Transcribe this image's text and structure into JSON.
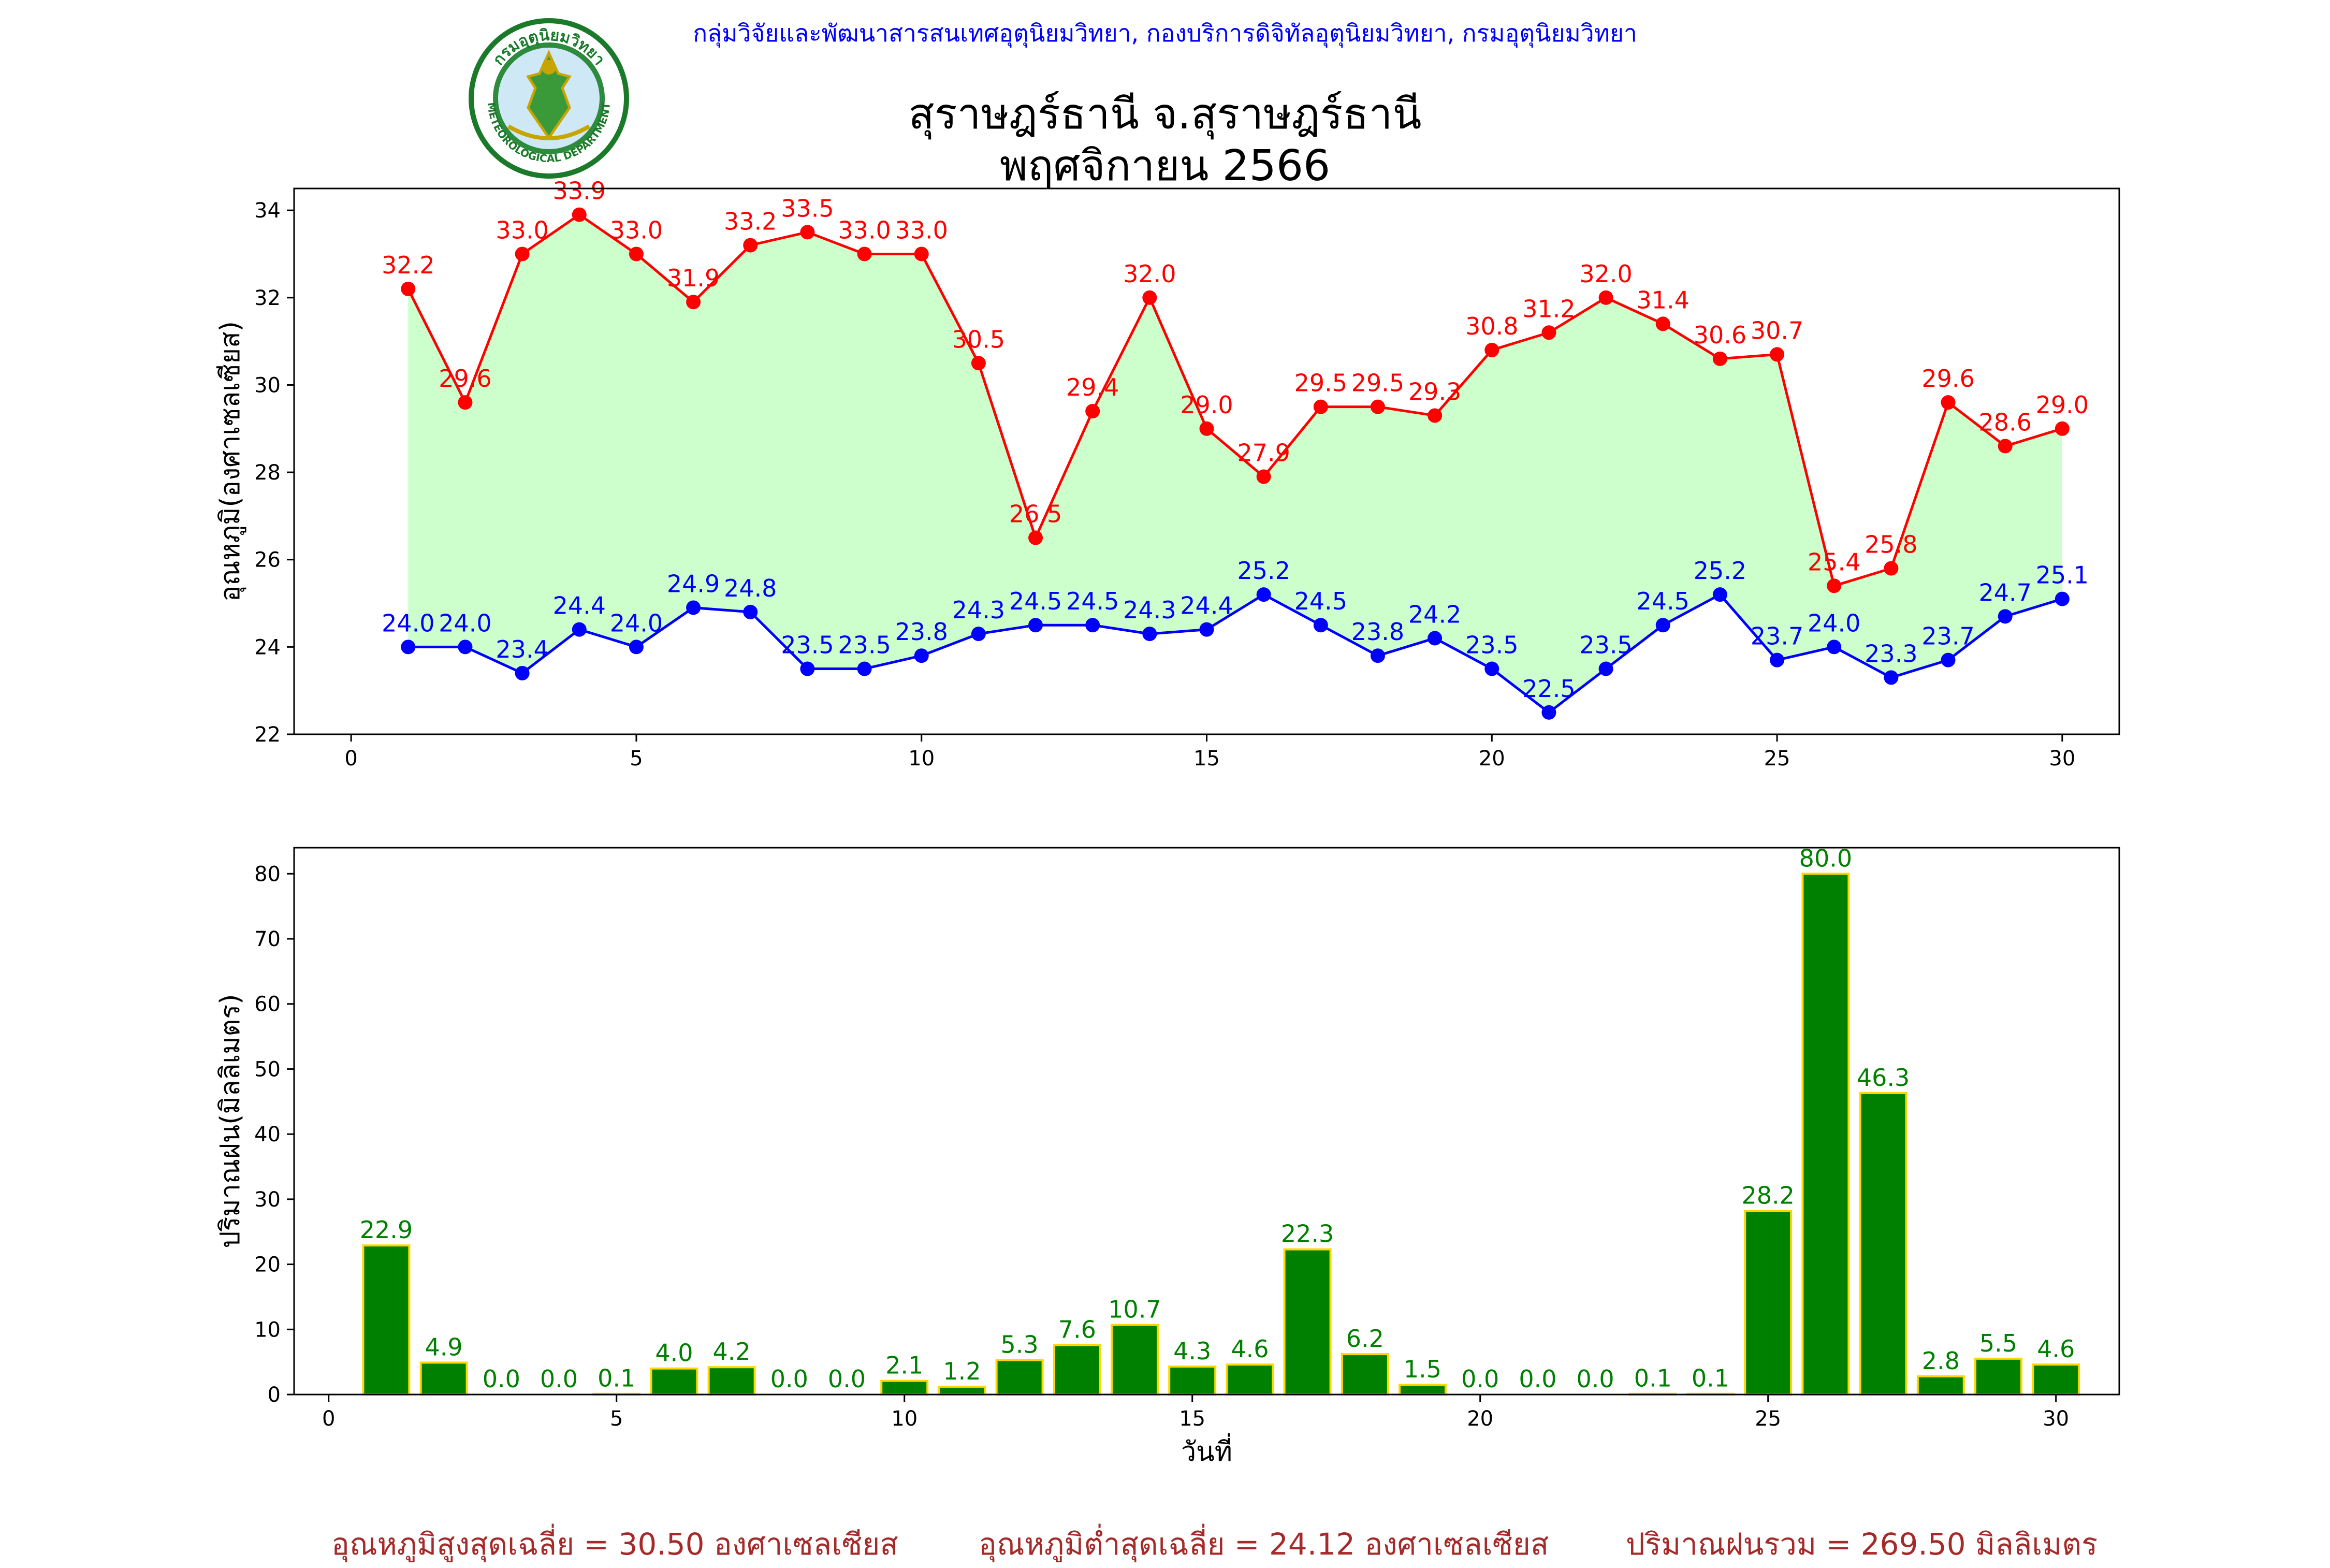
{
  "header": {
    "credit": "กลุ่มวิจัยและพัฒนาสารสนเทศอุตุนิยมวิทยา, กองบริการดิจิทัลอุตุนิยมวิทยา, กรมอุตุนิยมวิทยา",
    "title_line1": "สุราษฎร์ธานี จ.สุราษฎร์ธานี",
    "title_line2": "พฤศจิกายน 2566",
    "logo_text_top": "กรมอุตุนิยมวิทยา",
    "logo_text_bottom": "METEOROLOGICAL DEPARTMENT"
  },
  "stats": {
    "max_avg": "อุณหภูมิสูงสุดเฉลี่ย = 30.50 องศาเซลเซียส",
    "min_avg": "อุณหภูมิต่ำสุดเฉลี่ย = 24.12 องศาเซลเซียส",
    "rain_total": "ปริมาณฝนรวม = 269.50 มิลลิเมตร"
  },
  "colors": {
    "max": "#ff0000",
    "min": "#0000ff",
    "fill": "#ccffcc",
    "bar": "#008000",
    "bar_edge": "#ffd700",
    "stats": "#a52a2a"
  },
  "chart_data": [
    {
      "type": "line",
      "ylabel": "อุณหภูมิ(องศาเซลเซียส)",
      "xlim": [
        -1,
        31
      ],
      "ylim": [
        22,
        34.5
      ],
      "xticks": [
        0,
        5,
        10,
        15,
        20,
        25,
        30
      ],
      "yticks": [
        22,
        24,
        26,
        28,
        30,
        32,
        34
      ],
      "x": [
        1,
        2,
        3,
        4,
        5,
        6,
        7,
        8,
        9,
        10,
        11,
        12,
        13,
        14,
        15,
        16,
        17,
        18,
        19,
        20,
        21,
        22,
        23,
        24,
        25,
        26,
        27,
        28,
        29,
        30
      ],
      "series": [
        {
          "key": "max",
          "values": [
            32.2,
            29.6,
            33.0,
            33.9,
            33.0,
            31.9,
            33.2,
            33.5,
            33.0,
            33.0,
            30.5,
            26.5,
            29.4,
            32.0,
            29.0,
            27.9,
            29.5,
            29.5,
            29.3,
            30.8,
            31.2,
            32.0,
            31.4,
            30.6,
            30.7,
            25.4,
            25.8,
            29.6,
            28.6,
            29.0
          ]
        },
        {
          "key": "min",
          "values": [
            24.0,
            24.0,
            23.4,
            24.4,
            24.0,
            24.9,
            24.8,
            23.5,
            23.5,
            23.8,
            24.3,
            24.5,
            24.5,
            24.3,
            24.4,
            25.2,
            24.5,
            23.8,
            24.2,
            23.5,
            22.5,
            23.5,
            24.5,
            25.2,
            23.7,
            24.0,
            23.3,
            23.7,
            24.7,
            25.1
          ]
        }
      ]
    },
    {
      "type": "bar",
      "xlabel": "วันที่",
      "ylabel": "ปริมาณฝน(มิลลิเมตร)",
      "xlim": [
        -0.6,
        31.1
      ],
      "ylim": [
        0,
        84
      ],
      "xticks": [
        0,
        5,
        10,
        15,
        20,
        25,
        30
      ],
      "yticks": [
        0,
        10,
        20,
        30,
        40,
        50,
        60,
        70,
        80
      ],
      "categories": [
        1,
        2,
        3,
        4,
        5,
        6,
        7,
        8,
        9,
        10,
        11,
        12,
        13,
        14,
        15,
        16,
        17,
        18,
        19,
        20,
        21,
        22,
        23,
        24,
        25,
        26,
        27,
        28,
        29,
        30
      ],
      "values": [
        22.9,
        4.9,
        0.0,
        0.0,
        0.1,
        4.0,
        4.2,
        0.0,
        0.0,
        2.1,
        1.2,
        5.3,
        7.6,
        10.7,
        4.3,
        4.6,
        22.3,
        6.2,
        1.5,
        0.0,
        0.0,
        0.0,
        0.1,
        0.1,
        28.2,
        80.0,
        46.3,
        2.8,
        5.5,
        4.6
      ]
    }
  ]
}
